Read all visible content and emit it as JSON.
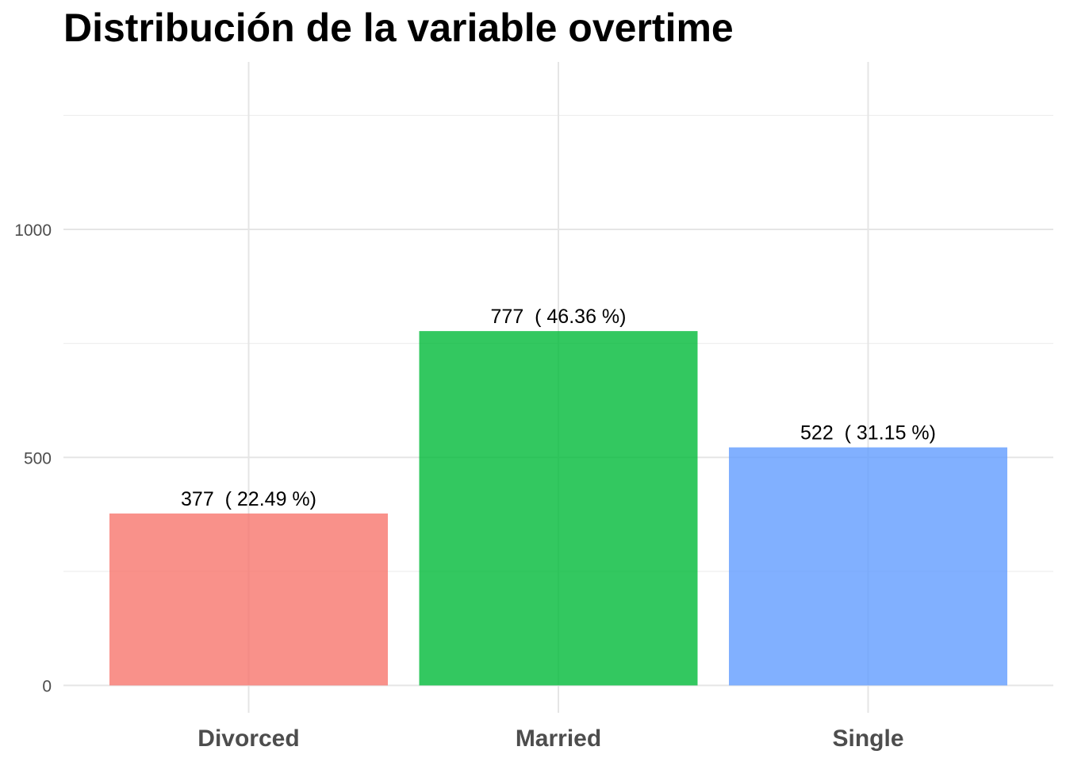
{
  "chart_data": {
    "type": "bar",
    "title": "Distribución de la variable overtime",
    "xlabel": "",
    "ylabel": "",
    "categories": [
      "Divorced",
      "Married",
      "Single"
    ],
    "values": [
      377,
      777,
      522
    ],
    "data_labels": [
      "377  ( 22.49 %)",
      "777  ( 46.36 %)",
      "522  ( 31.15 %)"
    ],
    "colors": [
      "#F8766D",
      "#00BA38",
      "#619CFF"
    ],
    "bar_opacity": 0.8,
    "ylim": [
      0,
      1250
    ],
    "y_ticks": [
      0,
      500,
      1000
    ],
    "y_minor_ticks": [
      250,
      750,
      1250
    ],
    "grid": true,
    "legend": "none"
  }
}
